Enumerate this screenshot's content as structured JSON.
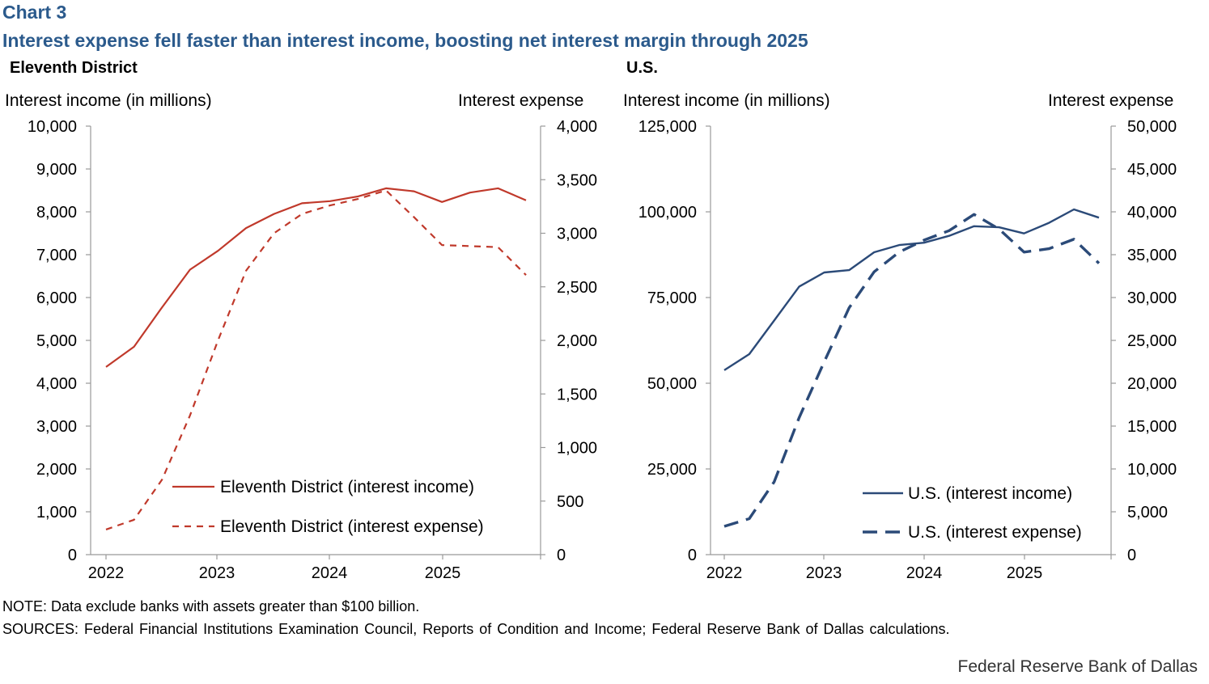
{
  "header": {
    "chart_number": "Chart 3",
    "title": "Interest expense fell faster than interest income, boosting net interest margin through 2025"
  },
  "footer": {
    "note": "NOTE: Data exclude banks with assets greater than $100 billion.",
    "sources": "SOURCES: Federal Financial Institutions Examination Council, Reports of Condition and Income; Federal Reserve Bank of Dallas calculations.",
    "credit": "Federal Reserve Bank of Dallas"
  },
  "colors": {
    "eleventh_district": "#c0392b",
    "us": "#2b4a78",
    "axis": "#999999"
  },
  "chart_data": [
    {
      "type": "line",
      "panel_title": "Eleventh District",
      "ylabel": "Interest income (in millions)",
      "y2label": "Interest expense",
      "ylim": [
        0,
        10000
      ],
      "y_ticks": [
        0,
        1000,
        2000,
        3000,
        4000,
        5000,
        6000,
        7000,
        8000,
        9000,
        10000
      ],
      "y_tick_labels": [
        "0",
        "1,000",
        "2,000",
        "3,000",
        "4,000",
        "5,000",
        "6,000",
        "7,000",
        "8,000",
        "9,000",
        "10,000"
      ],
      "y2lim": [
        0,
        4000
      ],
      "y2_ticks": [
        0,
        500,
        1000,
        1500,
        2000,
        2500,
        3000,
        3500,
        4000
      ],
      "y2_tick_labels": [
        "0",
        "500",
        "1,000",
        "1,500",
        "2,000",
        "2,500",
        "3,000",
        "3,500",
        "4,000"
      ],
      "x_tick_labels": [
        "2022",
        "2023",
        "2024",
        "2025"
      ],
      "x": [
        "2022Q1",
        "2022Q2",
        "2022Q3",
        "2022Q4",
        "2023Q1",
        "2023Q2",
        "2023Q3",
        "2023Q4",
        "2024Q1",
        "2024Q2",
        "2024Q3",
        "2024Q4",
        "2025Q1",
        "2025Q2",
        "2025Q3",
        "2025Q4"
      ],
      "legend_position": "bottom-right",
      "series": [
        {
          "name": "Eleventh District (interest income)",
          "axis": "left",
          "style": "solid",
          "values": [
            4380,
            4850,
            5770,
            6650,
            7090,
            7620,
            7950,
            8200,
            8250,
            8360,
            8550,
            8480,
            8230,
            8450,
            8550,
            8270
          ]
        },
        {
          "name": "Eleventh District (interest expense)",
          "axis": "right",
          "style": "dashed",
          "values": [
            235,
            325,
            700,
            1300,
            2000,
            2650,
            3000,
            3180,
            3260,
            3320,
            3400,
            3150,
            2890,
            2880,
            2870,
            2610
          ]
        }
      ]
    },
    {
      "type": "line",
      "panel_title": "U.S.",
      "ylabel": "Interest income (in millions)",
      "y2label": "Interest expense",
      "ylim": [
        0,
        125000
      ],
      "y_ticks": [
        0,
        25000,
        50000,
        75000,
        100000,
        125000
      ],
      "y_tick_labels": [
        "0",
        "25,000",
        "50,000",
        "75,000",
        "100,000",
        "125,000"
      ],
      "y2lim": [
        0,
        50000
      ],
      "y2_ticks": [
        0,
        5000,
        10000,
        15000,
        20000,
        25000,
        30000,
        35000,
        40000,
        45000,
        50000
      ],
      "y2_tick_labels": [
        "0",
        "5,000",
        "10,000",
        "15,000",
        "20,000",
        "25,000",
        "30,000",
        "35,000",
        "40,000",
        "45,000",
        "50,000"
      ],
      "x_tick_labels": [
        "2022",
        "2023",
        "2024",
        "2025"
      ],
      "x": [
        "2022Q1",
        "2022Q2",
        "2022Q3",
        "2022Q4",
        "2023Q1",
        "2023Q2",
        "2023Q3",
        "2023Q4",
        "2024Q1",
        "2024Q2",
        "2024Q3",
        "2024Q4",
        "2025Q1",
        "2025Q2",
        "2025Q3",
        "2025Q4"
      ],
      "legend_position": "bottom-right",
      "series": [
        {
          "name": "U.S. (interest income)",
          "axis": "left",
          "style": "solid",
          "values": [
            53800,
            58500,
            68300,
            78200,
            82300,
            83000,
            88200,
            90300,
            91000,
            93000,
            95800,
            95500,
            93700,
            96800,
            100700,
            98300
          ]
        },
        {
          "name": "U.S. (interest expense)",
          "axis": "right",
          "style": "dashed",
          "values": [
            3300,
            4200,
            8500,
            16000,
            22500,
            28800,
            33000,
            35300,
            36700,
            37800,
            39700,
            38000,
            35300,
            35700,
            36800,
            34000
          ]
        }
      ]
    }
  ]
}
